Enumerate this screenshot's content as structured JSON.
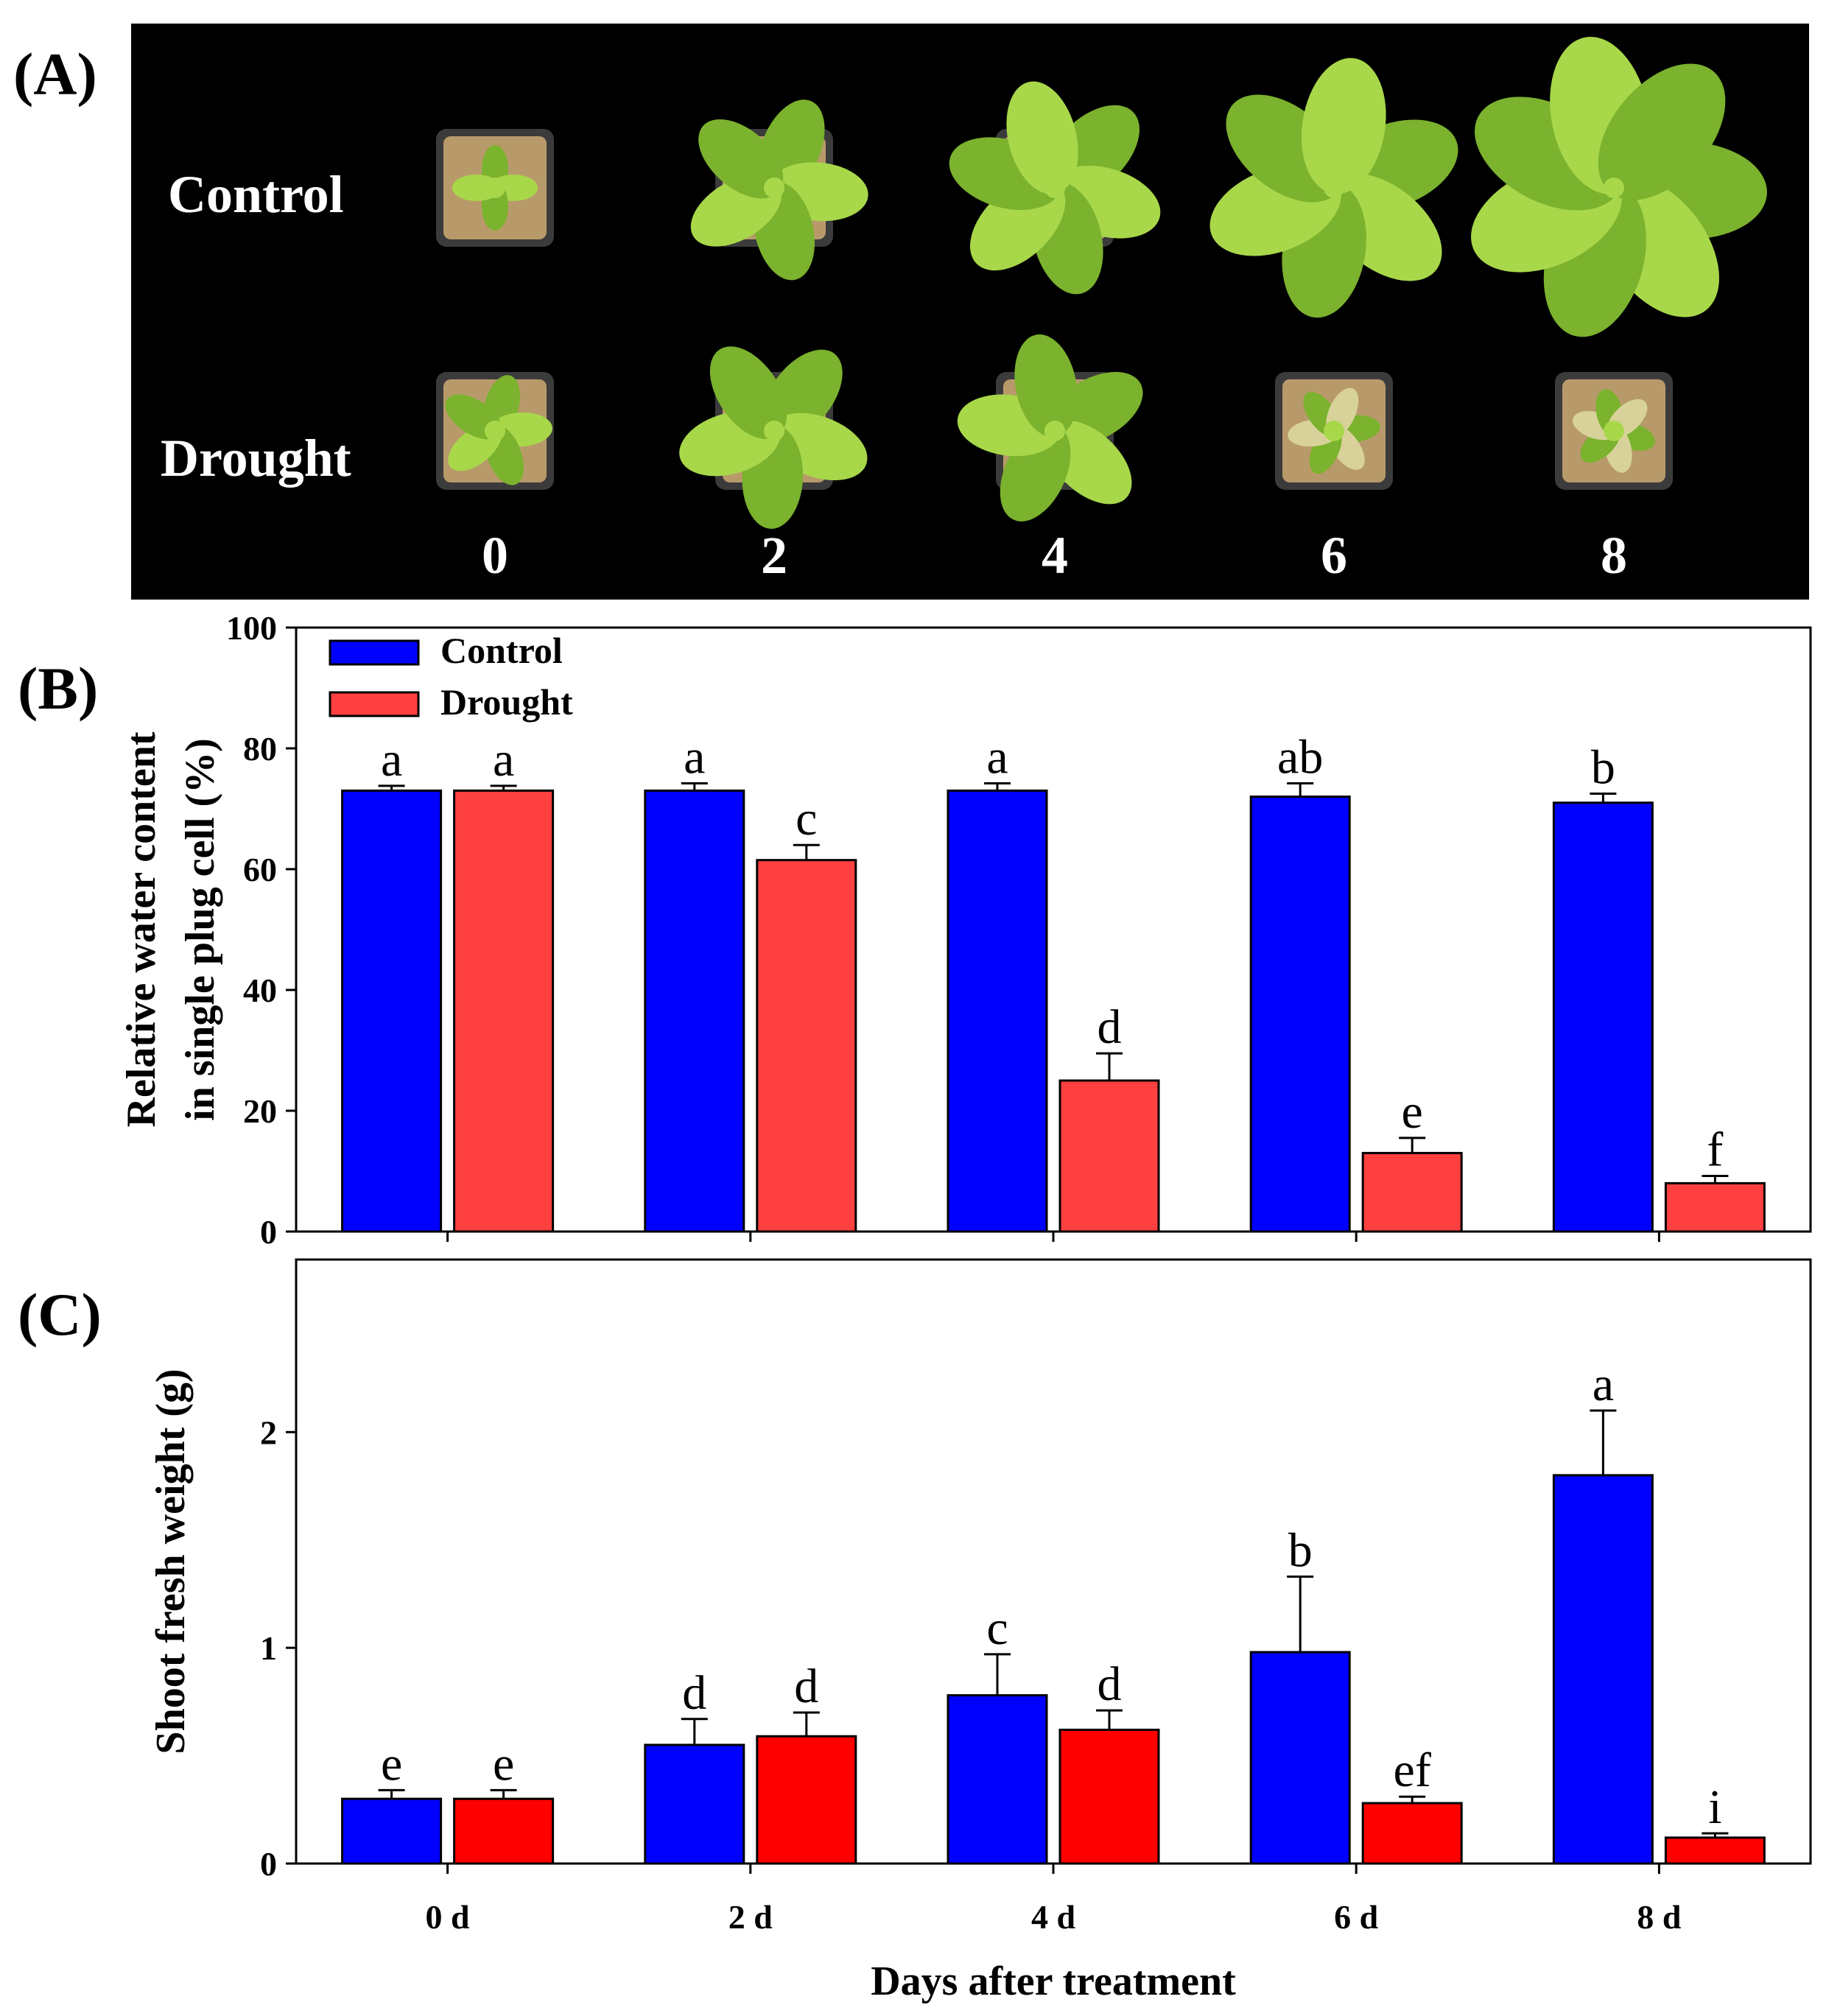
{
  "panels": {
    "a": {
      "label": "(A)"
    },
    "b": {
      "label": "(B)"
    },
    "c": {
      "label": "(C)"
    }
  },
  "photo": {
    "row_labels": [
      "Control",
      "Drought"
    ],
    "day_labels": [
      "0",
      "2",
      "4",
      "6",
      "8"
    ],
    "colors": {
      "background": "#000000",
      "leaf": "#a8d84a",
      "leaf_dark": "#7bb22e",
      "leaf_dry": "#d8d29a",
      "pot": "#3b3b3b",
      "soil": "#b89a6a"
    }
  },
  "chart_data": [
    {
      "type": "bar",
      "panel": "B",
      "categories": [
        "0 d",
        "2 d",
        "4 d",
        "6 d",
        "8 d"
      ],
      "series": [
        {
          "name": "Control",
          "color": "#0000ff",
          "values": [
            73,
            73,
            73,
            72,
            71
          ],
          "errors": [
            0.8,
            1.2,
            1.2,
            2.2,
            1.5
          ],
          "letters": [
            "a",
            "a",
            "a",
            "ab",
            "b"
          ]
        },
        {
          "name": "Drought",
          "color": "#ff4040",
          "values": [
            73,
            61.5,
            25,
            13,
            8
          ],
          "errors": [
            0.8,
            2.5,
            4.5,
            2.5,
            1.2
          ],
          "letters": [
            "a",
            "c",
            "d",
            "e",
            "f"
          ]
        }
      ],
      "title": "",
      "xlabel": "",
      "ylabel": [
        "Relative water content",
        "in single plug cell (%)"
      ],
      "ylim": [
        0,
        100
      ],
      "yticks": [
        0,
        20,
        40,
        60,
        80,
        100
      ],
      "legend": "top-left"
    },
    {
      "type": "bar",
      "panel": "C",
      "categories": [
        "0 d",
        "2 d",
        "4 d",
        "6 d",
        "8 d"
      ],
      "series": [
        {
          "name": "Control",
          "color": "#0000ff",
          "values": [
            0.3,
            0.55,
            0.78,
            0.98,
            1.8
          ],
          "errors": [
            0.04,
            0.12,
            0.19,
            0.35,
            0.3
          ],
          "letters": [
            "e",
            "d",
            "c",
            "b",
            "a"
          ]
        },
        {
          "name": "Drought",
          "color": "#ff0000",
          "values": [
            0.3,
            0.59,
            0.62,
            0.28,
            0.12
          ],
          "errors": [
            0.04,
            0.11,
            0.09,
            0.03,
            0.02
          ],
          "letters": [
            "e",
            "d",
            "d",
            "ef",
            "i"
          ]
        }
      ],
      "title": "",
      "xlabel": "Days after treatment",
      "ylabel": "Shoot fresh weight (g)",
      "ylim": [
        0,
        2.8
      ],
      "yticks": [
        0,
        1,
        2
      ]
    }
  ]
}
